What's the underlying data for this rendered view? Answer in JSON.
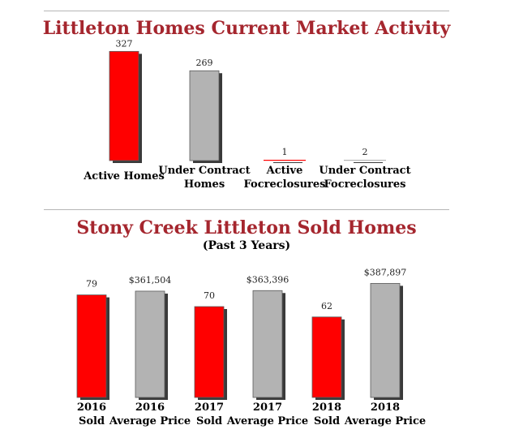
{
  "chart_data": [
    {
      "type": "bar",
      "title": "Littleton Homes Current Market Activity",
      "categories": [
        [
          "Active Homes"
        ],
        [
          "Under Contract",
          "Homes"
        ],
        [
          "Active",
          "Focreclosures"
        ],
        [
          "Under Contract",
          "Focreclosures"
        ]
      ],
      "values": [
        327,
        269,
        1,
        2
      ],
      "value_labels": [
        "327",
        "269",
        "1",
        "2"
      ],
      "colors": [
        "#ff0000",
        "#b3b3b3",
        "#ff0000",
        "#b3b3b3"
      ],
      "ylim": [
        0,
        340
      ]
    },
    {
      "type": "bar",
      "title": "Stony Creek Littleton Sold Homes",
      "subtitle": "(Past 3 Years)",
      "categories": [
        [
          "2016",
          "Sold"
        ],
        [
          "2016",
          "Average Price"
        ],
        [
          "2017",
          "Sold"
        ],
        [
          "2017",
          "Average Price"
        ],
        [
          "2018",
          "Sold"
        ],
        [
          "2018",
          "Average Price"
        ]
      ],
      "values": [
        79,
        361504,
        70,
        363396,
        62,
        387897
      ],
      "value_labels": [
        "79",
        "$361,504",
        "70",
        "$363,396",
        "62",
        "$387,897"
      ],
      "colors": [
        "#ff0000",
        "#b3b3b3",
        "#ff0000",
        "#b3b3b3",
        "#ff0000",
        "#b3b3b3"
      ]
    }
  ]
}
